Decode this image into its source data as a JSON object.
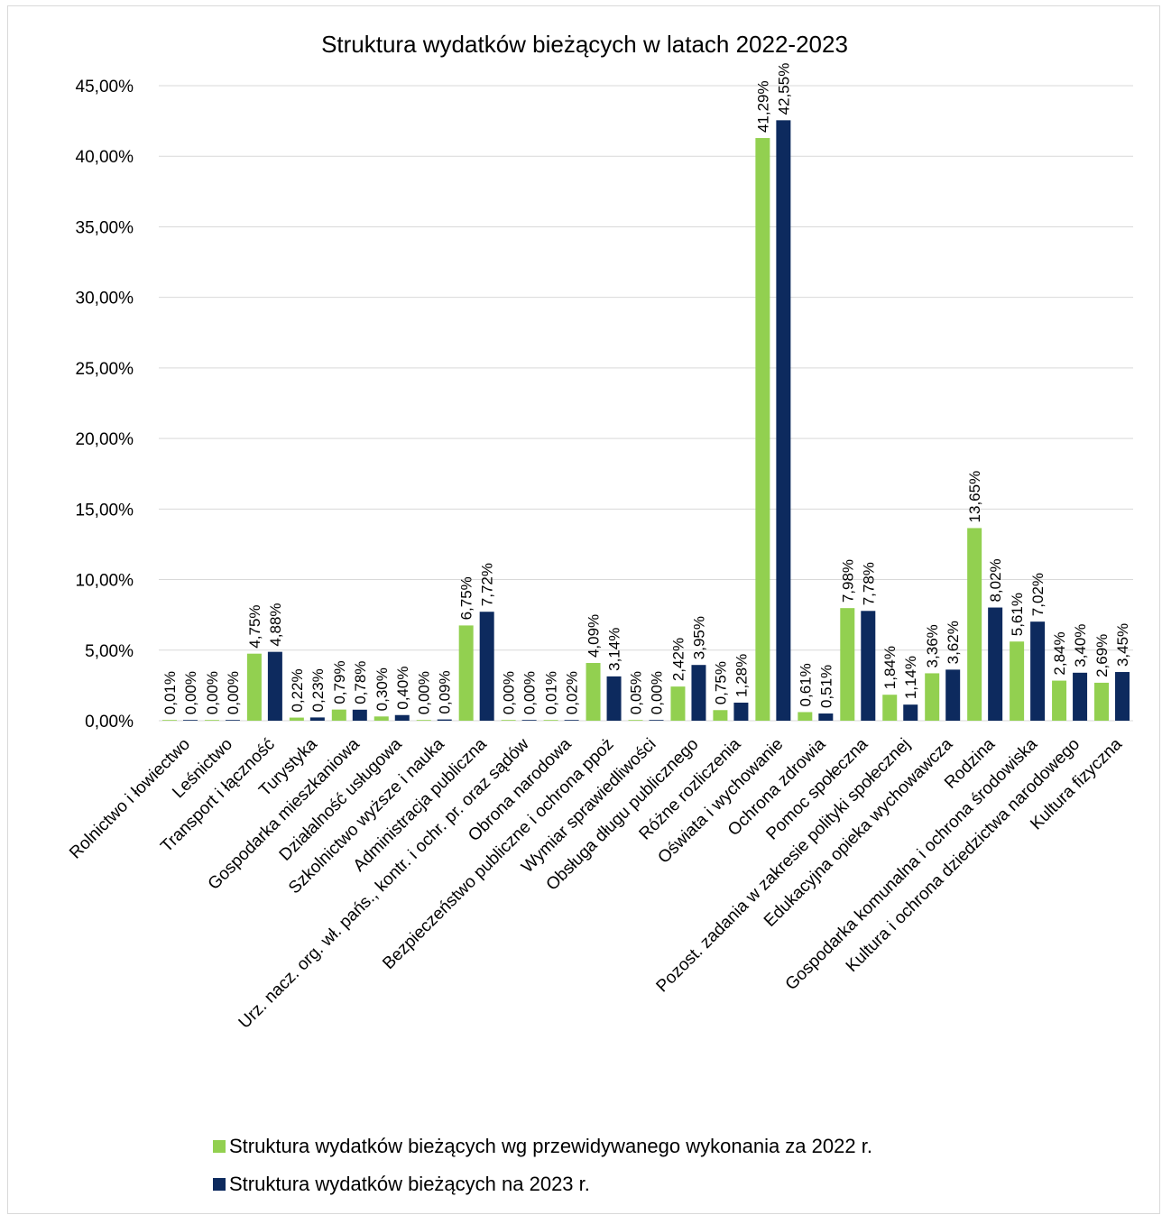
{
  "chart_data": {
    "type": "bar",
    "title": "Struktura wydatków bieżących w latach 2022-2023",
    "xlabel": "",
    "ylabel": "",
    "ylim": [
      0,
      45
    ],
    "yticks": [
      "0,00%",
      "5,00%",
      "10,00%",
      "15,00%",
      "20,00%",
      "25,00%",
      "30,00%",
      "35,00%",
      "40,00%",
      "45,00%"
    ],
    "grid": true,
    "legend_position": "bottom",
    "categories": [
      "Rolnictwo i łowiectwo",
      "Leśnictwo",
      "Transport i łączność",
      "Turystyka",
      "Gospodarka mieszkaniowa",
      "Działalność usługowa",
      "Szkolnictwo wyższe i nauka",
      "Administracja publiczna",
      "Urz. nacz. org. wł. pańs., kontr. i ochr. pr. oraz sądów",
      "Obrona narodowa",
      "Bezpieczeństwo publiczne i ochrona ppoż",
      "Wymiar sprawiedliwości",
      "Obsługa długu publicznego",
      "Różne rozliczenia",
      "Oświata i wychowanie",
      "Ochrona zdrowia",
      "Pomoc społeczna",
      "Pozost. zadania w zakresie polityki społecznej",
      "Edukacyjna opieka wychowawcza",
      "Rodzina",
      "Gospodarka komunalna i ochrona środowiska",
      "Kultura i ochrona dziedzictwa narodowego",
      "Kultura fizyczna"
    ],
    "series": [
      {
        "name": "Struktura wydatków bieżących wg przewidywanego wykonania za 2022 r.",
        "color": "#92d050",
        "values": [
          0.01,
          0.0,
          4.75,
          0.22,
          0.79,
          0.3,
          0.0,
          6.75,
          0.0,
          0.01,
          4.09,
          0.05,
          2.42,
          0.75,
          41.29,
          0.61,
          7.98,
          1.84,
          3.36,
          13.65,
          5.61,
          2.84,
          2.69
        ],
        "labels": [
          "0,01%",
          "0,00%",
          "4,75%",
          "0,22%",
          "0,79%",
          "0,30%",
          "0,00%",
          "6,75%",
          "0,00%",
          "0,01%",
          "4,09%",
          "0,05%",
          "2,42%",
          "0,75%",
          "41,29%",
          "0,61%",
          "7,98%",
          "1,84%",
          "3,36%",
          "13,65%",
          "5,61%",
          "2,84%",
          "2,69%"
        ]
      },
      {
        "name": "Struktura wydatków bieżących na 2023 r.",
        "color": "#0d2a5e",
        "values": [
          0.0,
          0.0,
          4.88,
          0.23,
          0.78,
          0.4,
          0.09,
          7.72,
          0.0,
          0.02,
          3.14,
          0.0,
          3.95,
          1.28,
          42.55,
          0.51,
          7.78,
          1.14,
          3.62,
          8.02,
          7.02,
          3.4,
          3.45
        ],
        "labels": [
          "0,00%",
          "0,00%",
          "4,88%",
          "0,23%",
          "0,78%",
          "0,40%",
          "0,09%",
          "7,72%",
          "0,00%",
          "0,02%",
          "3,14%",
          "0,00%",
          "3,95%",
          "1,28%",
          "42,55%",
          "0,51%",
          "7,78%",
          "1,14%",
          "3,62%",
          "8,02%",
          "7,02%",
          "3,40%",
          "3,45%"
        ]
      }
    ]
  }
}
